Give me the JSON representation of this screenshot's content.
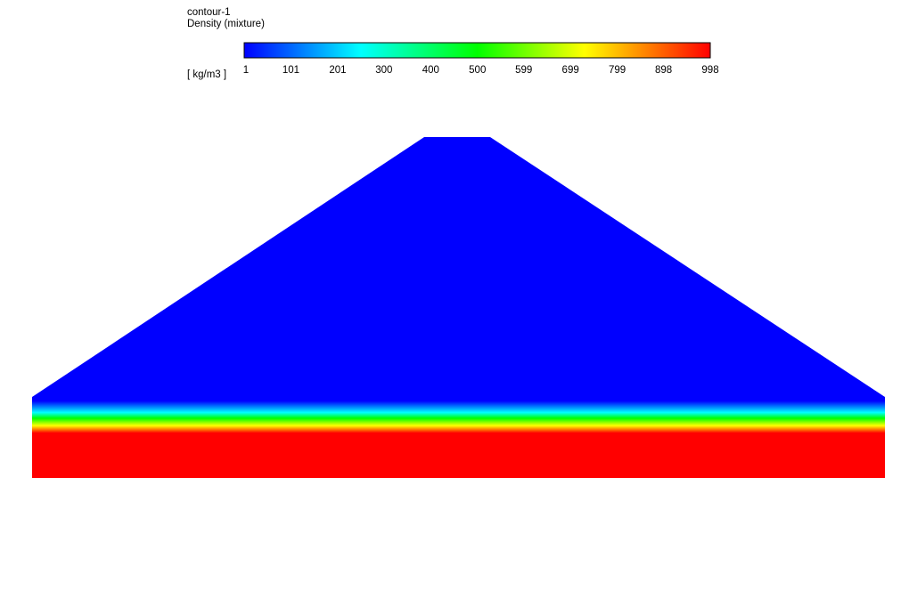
{
  "legend": {
    "title": "contour-1",
    "variable": "Density (mixture)",
    "unit": "[ kg/m3 ]",
    "ticks": [
      1,
      101,
      201,
      300,
      400,
      500,
      599,
      699,
      799,
      898,
      998
    ]
  }
}
